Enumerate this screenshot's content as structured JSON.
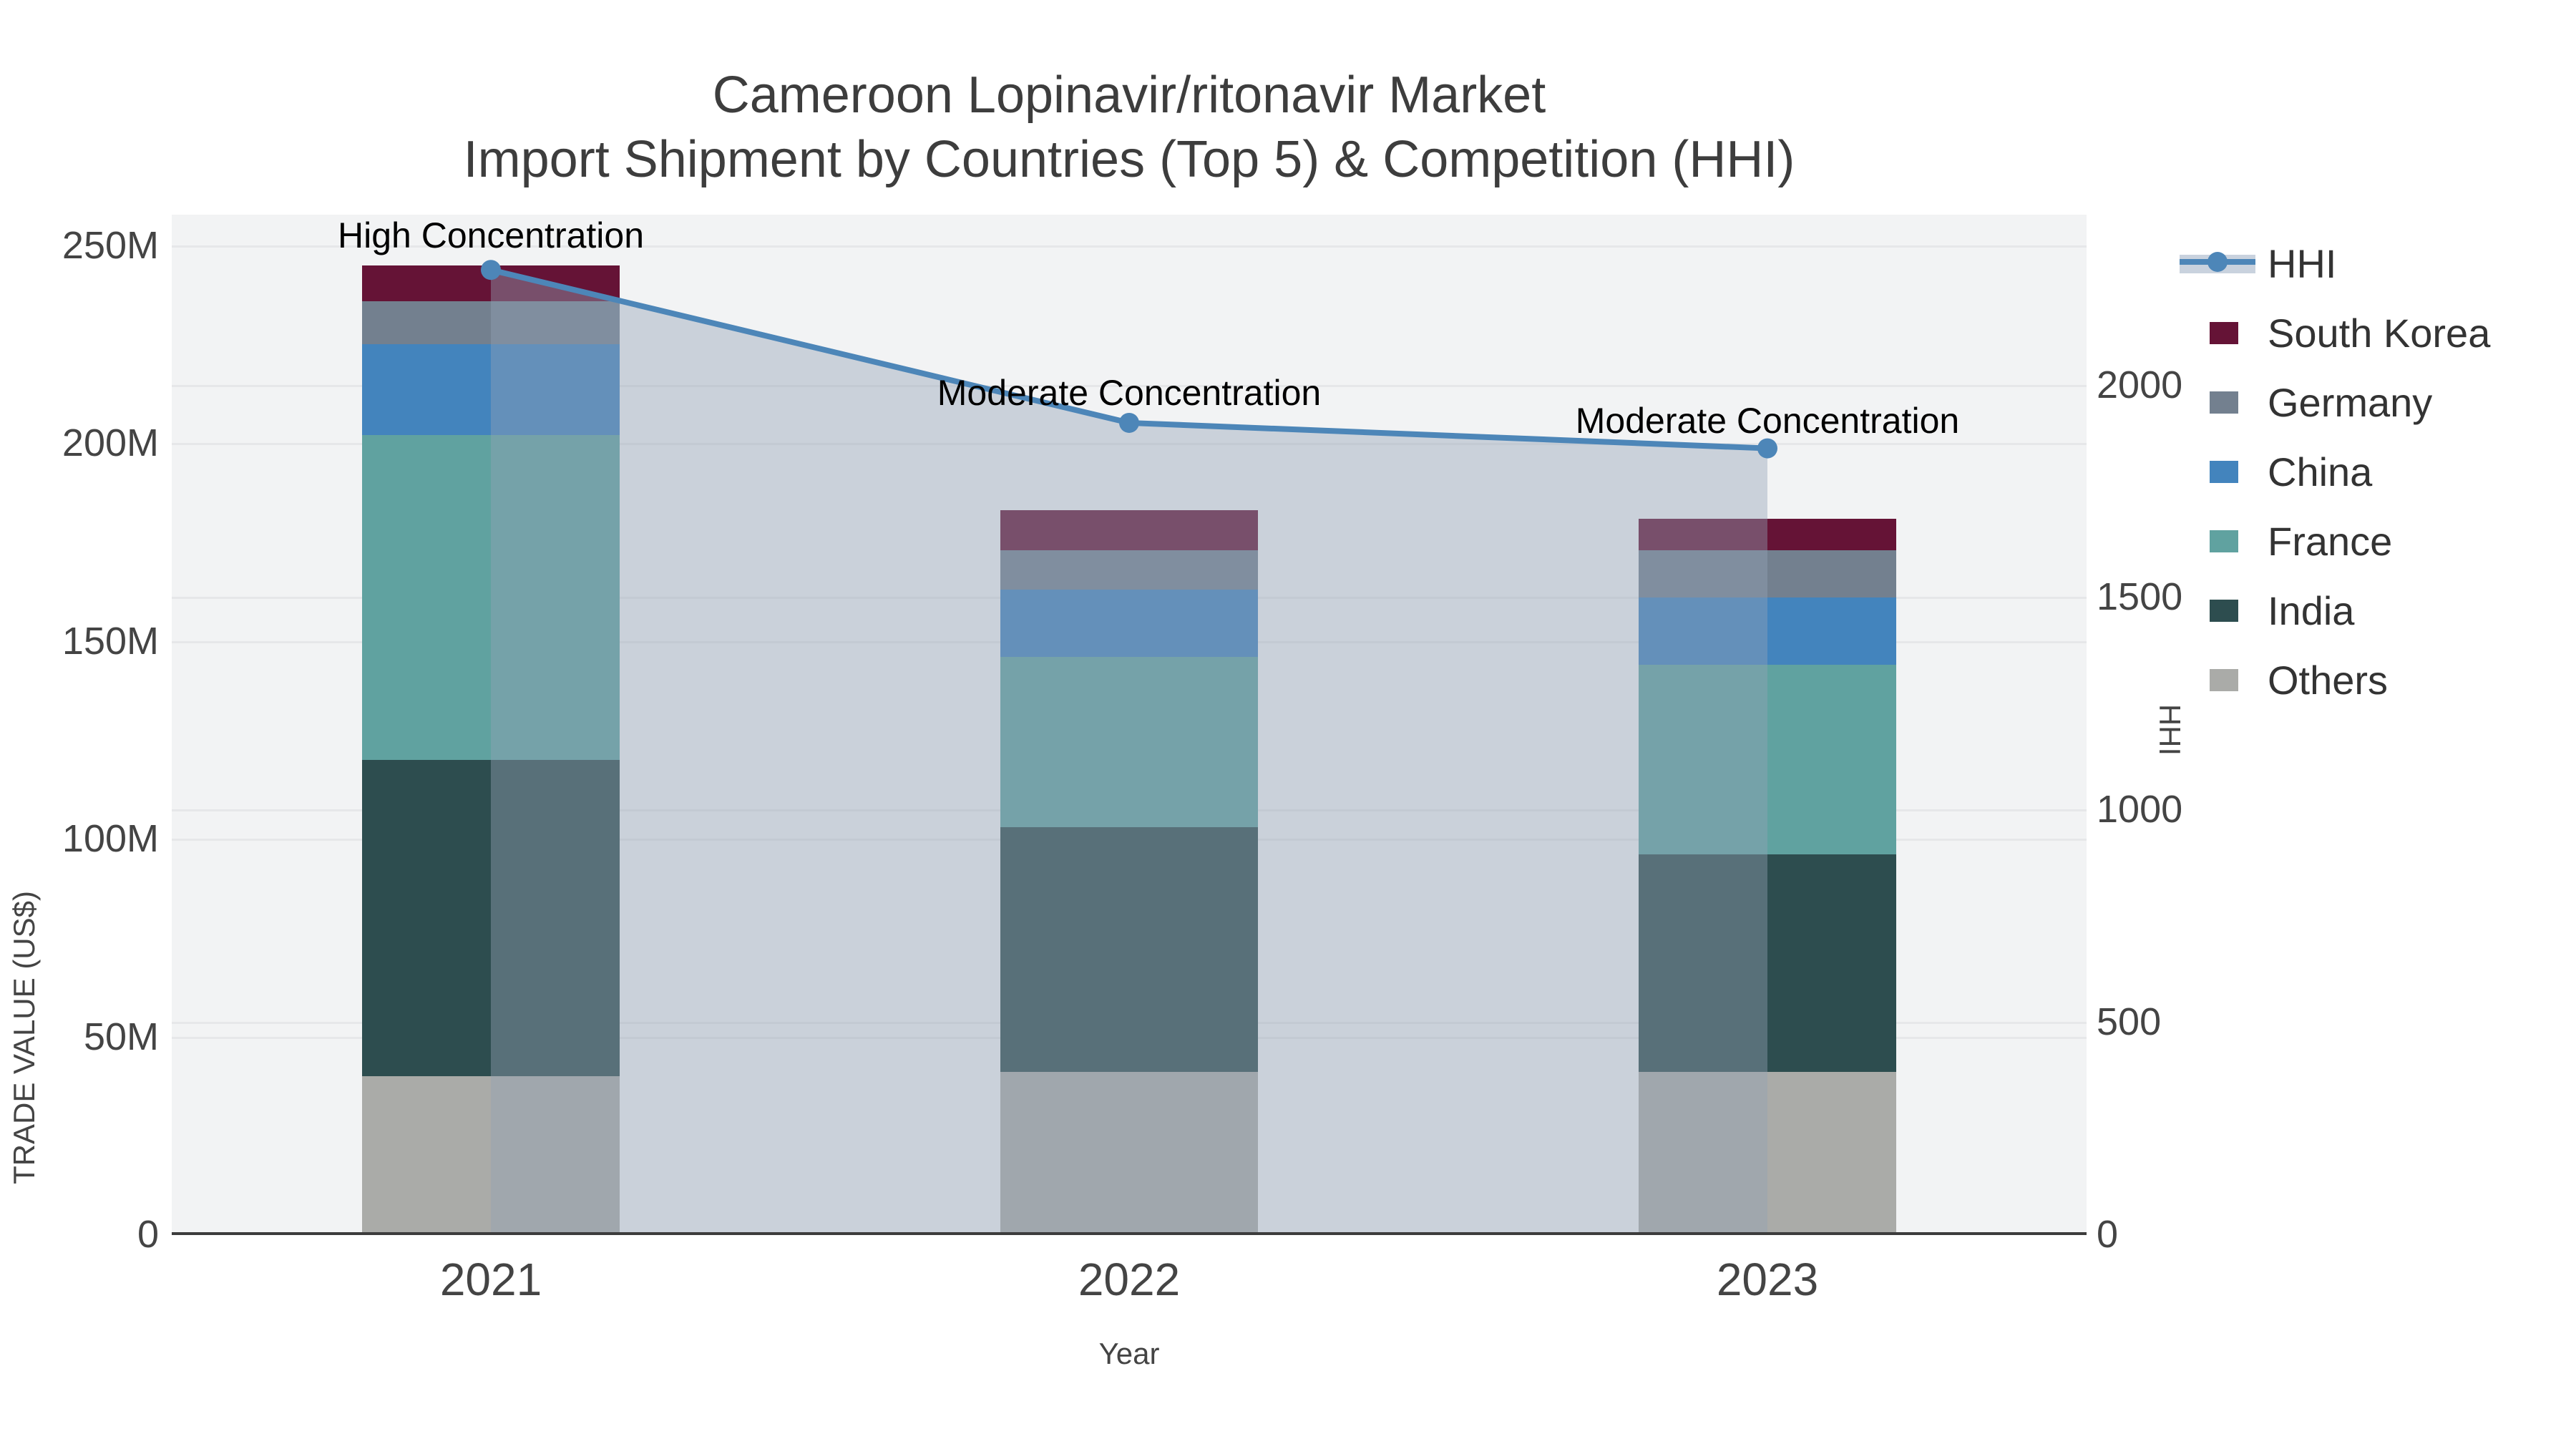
{
  "title": {
    "line1": "Cameroon Lopinavir/ritonavir Market",
    "line2": "Import Shipment by Countries (Top 5) & Competition (HHI)"
  },
  "axes": {
    "y_left": {
      "title": "TRADE VALUE (US$)",
      "ticks": [
        {
          "label": "0",
          "value": 0
        },
        {
          "label": "50M",
          "value": 50
        },
        {
          "label": "100M",
          "value": 100
        },
        {
          "label": "150M",
          "value": 150
        },
        {
          "label": "200M",
          "value": 200
        },
        {
          "label": "250M",
          "value": 250
        }
      ]
    },
    "y_right": {
      "title": "HHI",
      "ticks": [
        {
          "label": "0",
          "value": 0
        },
        {
          "label": "500",
          "value": 500
        },
        {
          "label": "1000",
          "value": 1000
        },
        {
          "label": "1500",
          "value": 1500
        },
        {
          "label": "2000",
          "value": 2000
        }
      ]
    },
    "x": {
      "title": "Year"
    }
  },
  "legend": {
    "items": [
      {
        "label": "HHI",
        "type": "line",
        "color": "#4d86b8"
      },
      {
        "label": "South Korea",
        "type": "swatch",
        "color": "#651336"
      },
      {
        "label": "Germany",
        "type": "swatch",
        "color": "#73808f"
      },
      {
        "label": "China",
        "type": "swatch",
        "color": "#4384bd"
      },
      {
        "label": "France",
        "type": "swatch",
        "color": "#60a2a0"
      },
      {
        "label": "India",
        "type": "swatch",
        "color": "#2d4d4f"
      },
      {
        "label": "Others",
        "type": "swatch",
        "color": "#aaaba8"
      }
    ]
  },
  "annotations": [
    {
      "text": "High Concentration",
      "category": "2021",
      "dy": -48
    },
    {
      "text": "Moderate Concentration",
      "category": "2022",
      "dy": -42
    },
    {
      "text": "Moderate Concentration",
      "category": "2023",
      "dy": -39
    }
  ],
  "chart_data": {
    "type": "bar",
    "subtype": "stacked-bars-with-hhi-line-area",
    "title": "Cameroon Lopinavir/ritonavir Market — Import Shipment by Countries (Top 5) & Competition (HHI)",
    "categories": [
      "2021",
      "2022",
      "2023"
    ],
    "xlabel": "Year",
    "ylabel_left": "TRADE VALUE (US$)",
    "ylabel_right": "HHI",
    "value_unit": "million US$",
    "series": [
      {
        "name": "Others",
        "color": "#aaaba8",
        "values": [
          40,
          41,
          41
        ]
      },
      {
        "name": "India",
        "color": "#2d4d4f",
        "values": [
          80,
          62,
          55
        ]
      },
      {
        "name": "France",
        "color": "#60a2a0",
        "values": [
          82,
          43,
          48
        ]
      },
      {
        "name": "China",
        "color": "#4384bd",
        "values": [
          23,
          17,
          17
        ]
      },
      {
        "name": "Germany",
        "color": "#73808f",
        "values": [
          11,
          10,
          12
        ]
      },
      {
        "name": "South Korea",
        "color": "#651336",
        "values": [
          9,
          10,
          8
        ]
      }
    ],
    "stacked_totals": [
      245,
      183,
      181
    ],
    "line_series": {
      "name": "HHI",
      "axis": "right",
      "color": "#4d86b8",
      "area_fill": "rgba(148,162,182,0.42)",
      "values": [
        2270,
        1910,
        1850
      ]
    },
    "ylim_left": [
      0,
      257.8
    ],
    "ylim_right": [
      0,
      2400
    ],
    "grid": true,
    "plot_bgcolor": "#f2f3f4",
    "legend_position": "top-right"
  }
}
